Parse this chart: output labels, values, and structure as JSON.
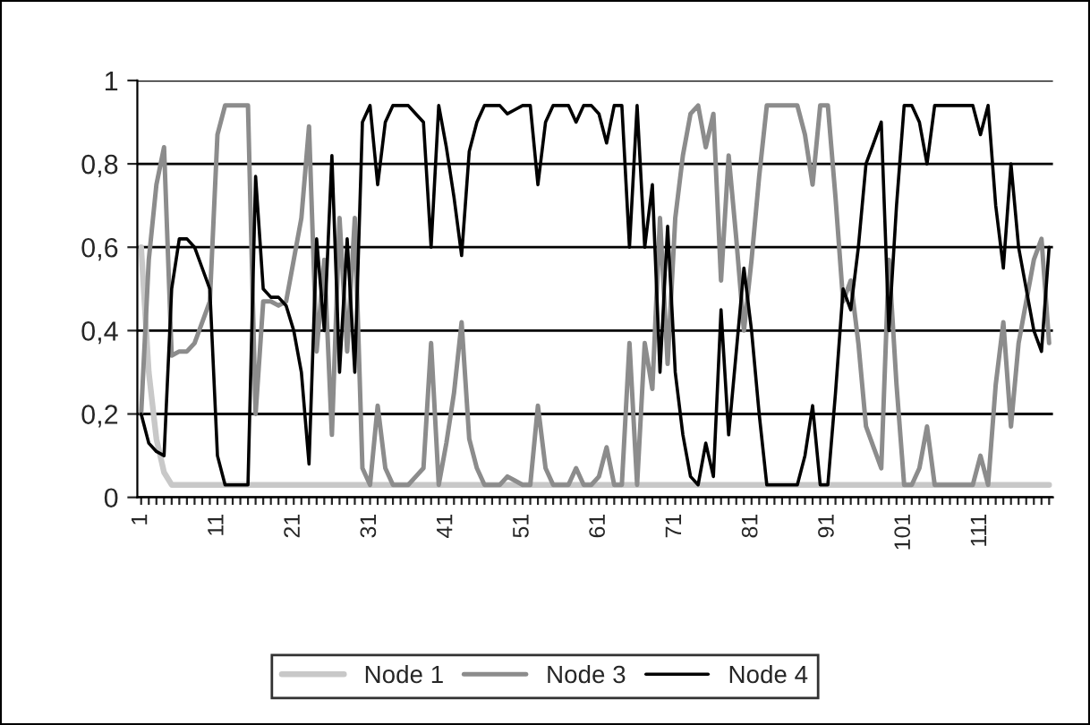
{
  "chart_data": {
    "type": "line",
    "categories": [
      "1",
      null,
      null,
      null,
      null,
      null,
      null,
      null,
      null,
      null,
      "11",
      null,
      null,
      null,
      null,
      null,
      null,
      null,
      null,
      null,
      "21",
      null,
      null,
      null,
      null,
      null,
      null,
      null,
      null,
      null,
      "31",
      null,
      null,
      null,
      null,
      null,
      null,
      null,
      null,
      null,
      "41",
      null,
      null,
      null,
      null,
      null,
      null,
      null,
      null,
      null,
      "51",
      null,
      null,
      null,
      null,
      null,
      null,
      null,
      null,
      null,
      "61",
      null,
      null,
      null,
      null,
      null,
      null,
      null,
      null,
      null,
      "71",
      null,
      null,
      null,
      null,
      null,
      null,
      null,
      null,
      null,
      "81",
      null,
      null,
      null,
      null,
      null,
      null,
      null,
      null,
      null,
      "91",
      null,
      null,
      null,
      null,
      null,
      null,
      null,
      null,
      null,
      "101",
      null,
      null,
      null,
      null,
      null,
      null,
      null,
      null,
      null,
      "111",
      null,
      null,
      null,
      null,
      null,
      null,
      null,
      null,
      null
    ],
    "series": [
      {
        "name": "Node 1",
        "color": "#c8c8c8",
        "values": [
          0.6,
          0.3,
          0.14,
          0.06,
          0.03,
          0.03,
          0.03,
          0.03,
          0.03,
          0.03,
          0.03,
          0.03,
          0.03,
          0.03,
          0.03,
          0.03,
          0.03,
          0.03,
          0.03,
          0.03,
          0.03,
          0.03,
          0.03,
          0.03,
          0.03,
          0.03,
          0.03,
          0.03,
          0.03,
          0.03,
          0.03,
          0.03,
          0.03,
          0.03,
          0.03,
          0.03,
          0.03,
          0.03,
          0.03,
          0.03,
          0.03,
          0.03,
          0.03,
          0.03,
          0.03,
          0.03,
          0.03,
          0.03,
          0.03,
          0.03,
          0.03,
          0.03,
          0.03,
          0.03,
          0.03,
          0.03,
          0.03,
          0.03,
          0.03,
          0.03,
          0.03,
          0.03,
          0.03,
          0.03,
          0.03,
          0.03,
          0.03,
          0.03,
          0.03,
          0.03,
          0.03,
          0.03,
          0.03,
          0.03,
          0.03,
          0.03,
          0.03,
          0.03,
          0.03,
          0.03,
          0.03,
          0.03,
          0.03,
          0.03,
          0.03,
          0.03,
          0.03,
          0.03,
          0.03,
          0.03,
          0.03,
          0.03,
          0.03,
          0.03,
          0.03,
          0.03,
          0.03,
          0.03,
          0.03,
          0.03,
          0.03,
          0.03,
          0.03,
          0.03,
          0.03,
          0.03,
          0.03,
          0.03,
          0.03,
          0.03,
          0.03,
          0.03,
          0.03,
          0.03,
          0.03,
          0.03,
          0.03,
          0.03,
          0.03,
          0.03
        ]
      },
      {
        "name": "Node 3",
        "color": "#8c8c8c",
        "values": [
          0.2,
          0.57,
          0.75,
          0.84,
          0.34,
          0.35,
          0.35,
          0.37,
          0.42,
          0.47,
          0.87,
          0.94,
          0.94,
          0.94,
          0.94,
          0.2,
          0.47,
          0.47,
          0.46,
          0.47,
          0.57,
          0.67,
          0.89,
          0.35,
          0.57,
          0.15,
          0.67,
          0.35,
          0.67,
          0.07,
          0.03,
          0.22,
          0.07,
          0.03,
          0.03,
          0.03,
          0.05,
          0.07,
          0.37,
          0.03,
          0.13,
          0.25,
          0.42,
          0.14,
          0.07,
          0.03,
          0.03,
          0.03,
          0.05,
          0.04,
          0.03,
          0.03,
          0.22,
          0.07,
          0.03,
          0.03,
          0.03,
          0.07,
          0.03,
          0.03,
          0.05,
          0.12,
          0.03,
          0.03,
          0.37,
          0.03,
          0.37,
          0.26,
          0.67,
          0.32,
          0.67,
          0.82,
          0.92,
          0.94,
          0.84,
          0.92,
          0.52,
          0.82,
          0.62,
          0.4,
          0.57,
          0.77,
          0.94,
          0.94,
          0.94,
          0.94,
          0.94,
          0.87,
          0.75,
          0.94,
          0.94,
          0.72,
          0.47,
          0.52,
          0.37,
          0.17,
          0.12,
          0.07,
          0.57,
          0.27,
          0.03,
          0.03,
          0.07,
          0.17,
          0.03,
          0.03,
          0.03,
          0.03,
          0.03,
          0.03,
          0.1,
          0.03,
          0.27,
          0.42,
          0.17,
          0.37,
          0.47,
          0.57,
          0.62,
          0.37
        ]
      },
      {
        "name": "Node 4",
        "color": "#000000",
        "values": [
          0.2,
          0.13,
          0.11,
          0.1,
          0.5,
          0.62,
          0.62,
          0.6,
          0.55,
          0.5,
          0.1,
          0.03,
          0.03,
          0.03,
          0.03,
          0.77,
          0.5,
          0.48,
          0.48,
          0.46,
          0.4,
          0.3,
          0.08,
          0.62,
          0.4,
          0.82,
          0.3,
          0.62,
          0.3,
          0.9,
          0.94,
          0.75,
          0.9,
          0.94,
          0.94,
          0.94,
          0.92,
          0.9,
          0.6,
          0.94,
          0.84,
          0.72,
          0.58,
          0.83,
          0.9,
          0.94,
          0.94,
          0.94,
          0.92,
          0.93,
          0.94,
          0.94,
          0.75,
          0.9,
          0.94,
          0.94,
          0.94,
          0.9,
          0.94,
          0.94,
          0.92,
          0.85,
          0.94,
          0.94,
          0.6,
          0.94,
          0.6,
          0.75,
          0.3,
          0.65,
          0.3,
          0.15,
          0.05,
          0.03,
          0.13,
          0.05,
          0.45,
          0.15,
          0.35,
          0.55,
          0.4,
          0.2,
          0.03,
          0.03,
          0.03,
          0.03,
          0.03,
          0.1,
          0.22,
          0.03,
          0.03,
          0.25,
          0.5,
          0.45,
          0.6,
          0.8,
          0.85,
          0.9,
          0.4,
          0.7,
          0.94,
          0.94,
          0.9,
          0.8,
          0.94,
          0.94,
          0.94,
          0.94,
          0.94,
          0.94,
          0.87,
          0.94,
          0.7,
          0.55,
          0.8,
          0.6,
          0.5,
          0.4,
          0.35,
          0.6
        ]
      }
    ],
    "ylim": [
      0,
      1
    ],
    "yticks": [
      {
        "value": 0,
        "label": "0"
      },
      {
        "value": 0.2,
        "label": "0,2"
      },
      {
        "value": 0.4,
        "label": "0,4"
      },
      {
        "value": 0.6,
        "label": "0,6"
      },
      {
        "value": 0.8,
        "label": "0,8"
      },
      {
        "value": 1,
        "label": "1"
      }
    ],
    "grid": "y",
    "legend": "bottom",
    "marker": "none",
    "line_style": "solid"
  }
}
